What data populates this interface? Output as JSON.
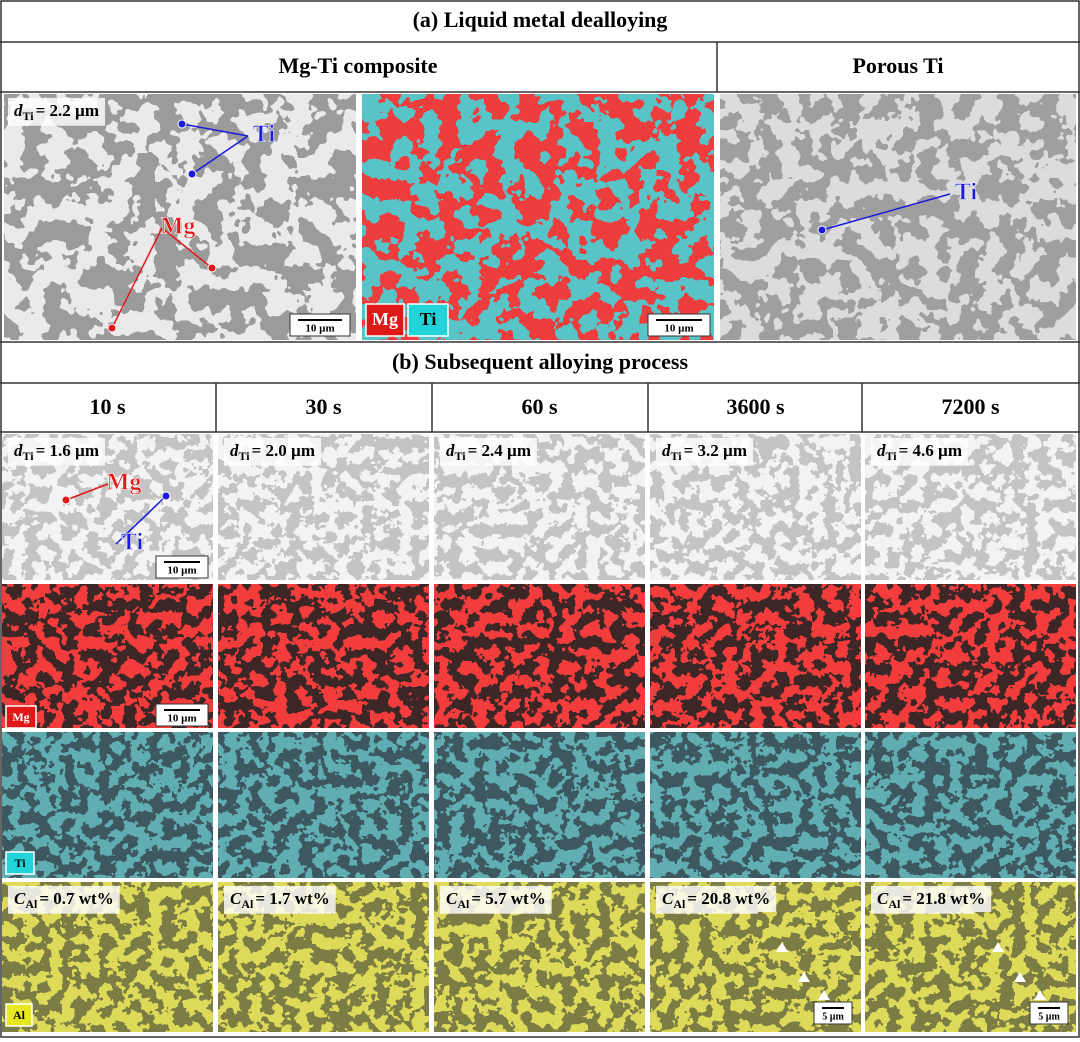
{
  "panel_a": {
    "title": "(a) Liquid metal dealloying",
    "headers": [
      "Mg-Ti composite",
      "Porous Ti"
    ],
    "sem_label": {
      "symbol": "d",
      "subscript": "Ti",
      "value": "= 2.2 µm"
    },
    "sem_phases": [
      "Ti",
      "Mg"
    ],
    "porous_phase": "Ti",
    "map_legend": [
      "Mg",
      "Ti"
    ],
    "scale_bars": [
      "10 µm",
      "10 µm"
    ]
  },
  "panel_b": {
    "title": "(b) Subsequent alloying process",
    "times": [
      "10 s",
      "30 s",
      "60 s",
      "3600 s",
      "7200 s"
    ],
    "d_label": {
      "symbol": "d",
      "subscript": "Ti"
    },
    "d_values": [
      "= 1.6 µm",
      "= 2.0 µm",
      "= 2.4 µm",
      "= 3.2 µm",
      "= 4.6 µm"
    ],
    "c_label": {
      "symbol": "C",
      "subscript": "Al"
    },
    "c_values": [
      "= 0.7 wt%",
      "= 1.7 wt%",
      "= 5.7 wt%",
      "= 20.8 wt%",
      "= 21.8 wt%"
    ],
    "sem_phases": [
      "Mg",
      "Ti"
    ],
    "map_badges": [
      "Mg",
      "Ti",
      "Al"
    ],
    "scale_bars": [
      "10 µm",
      "10 µm",
      "5 µm",
      "5 µm"
    ]
  }
}
